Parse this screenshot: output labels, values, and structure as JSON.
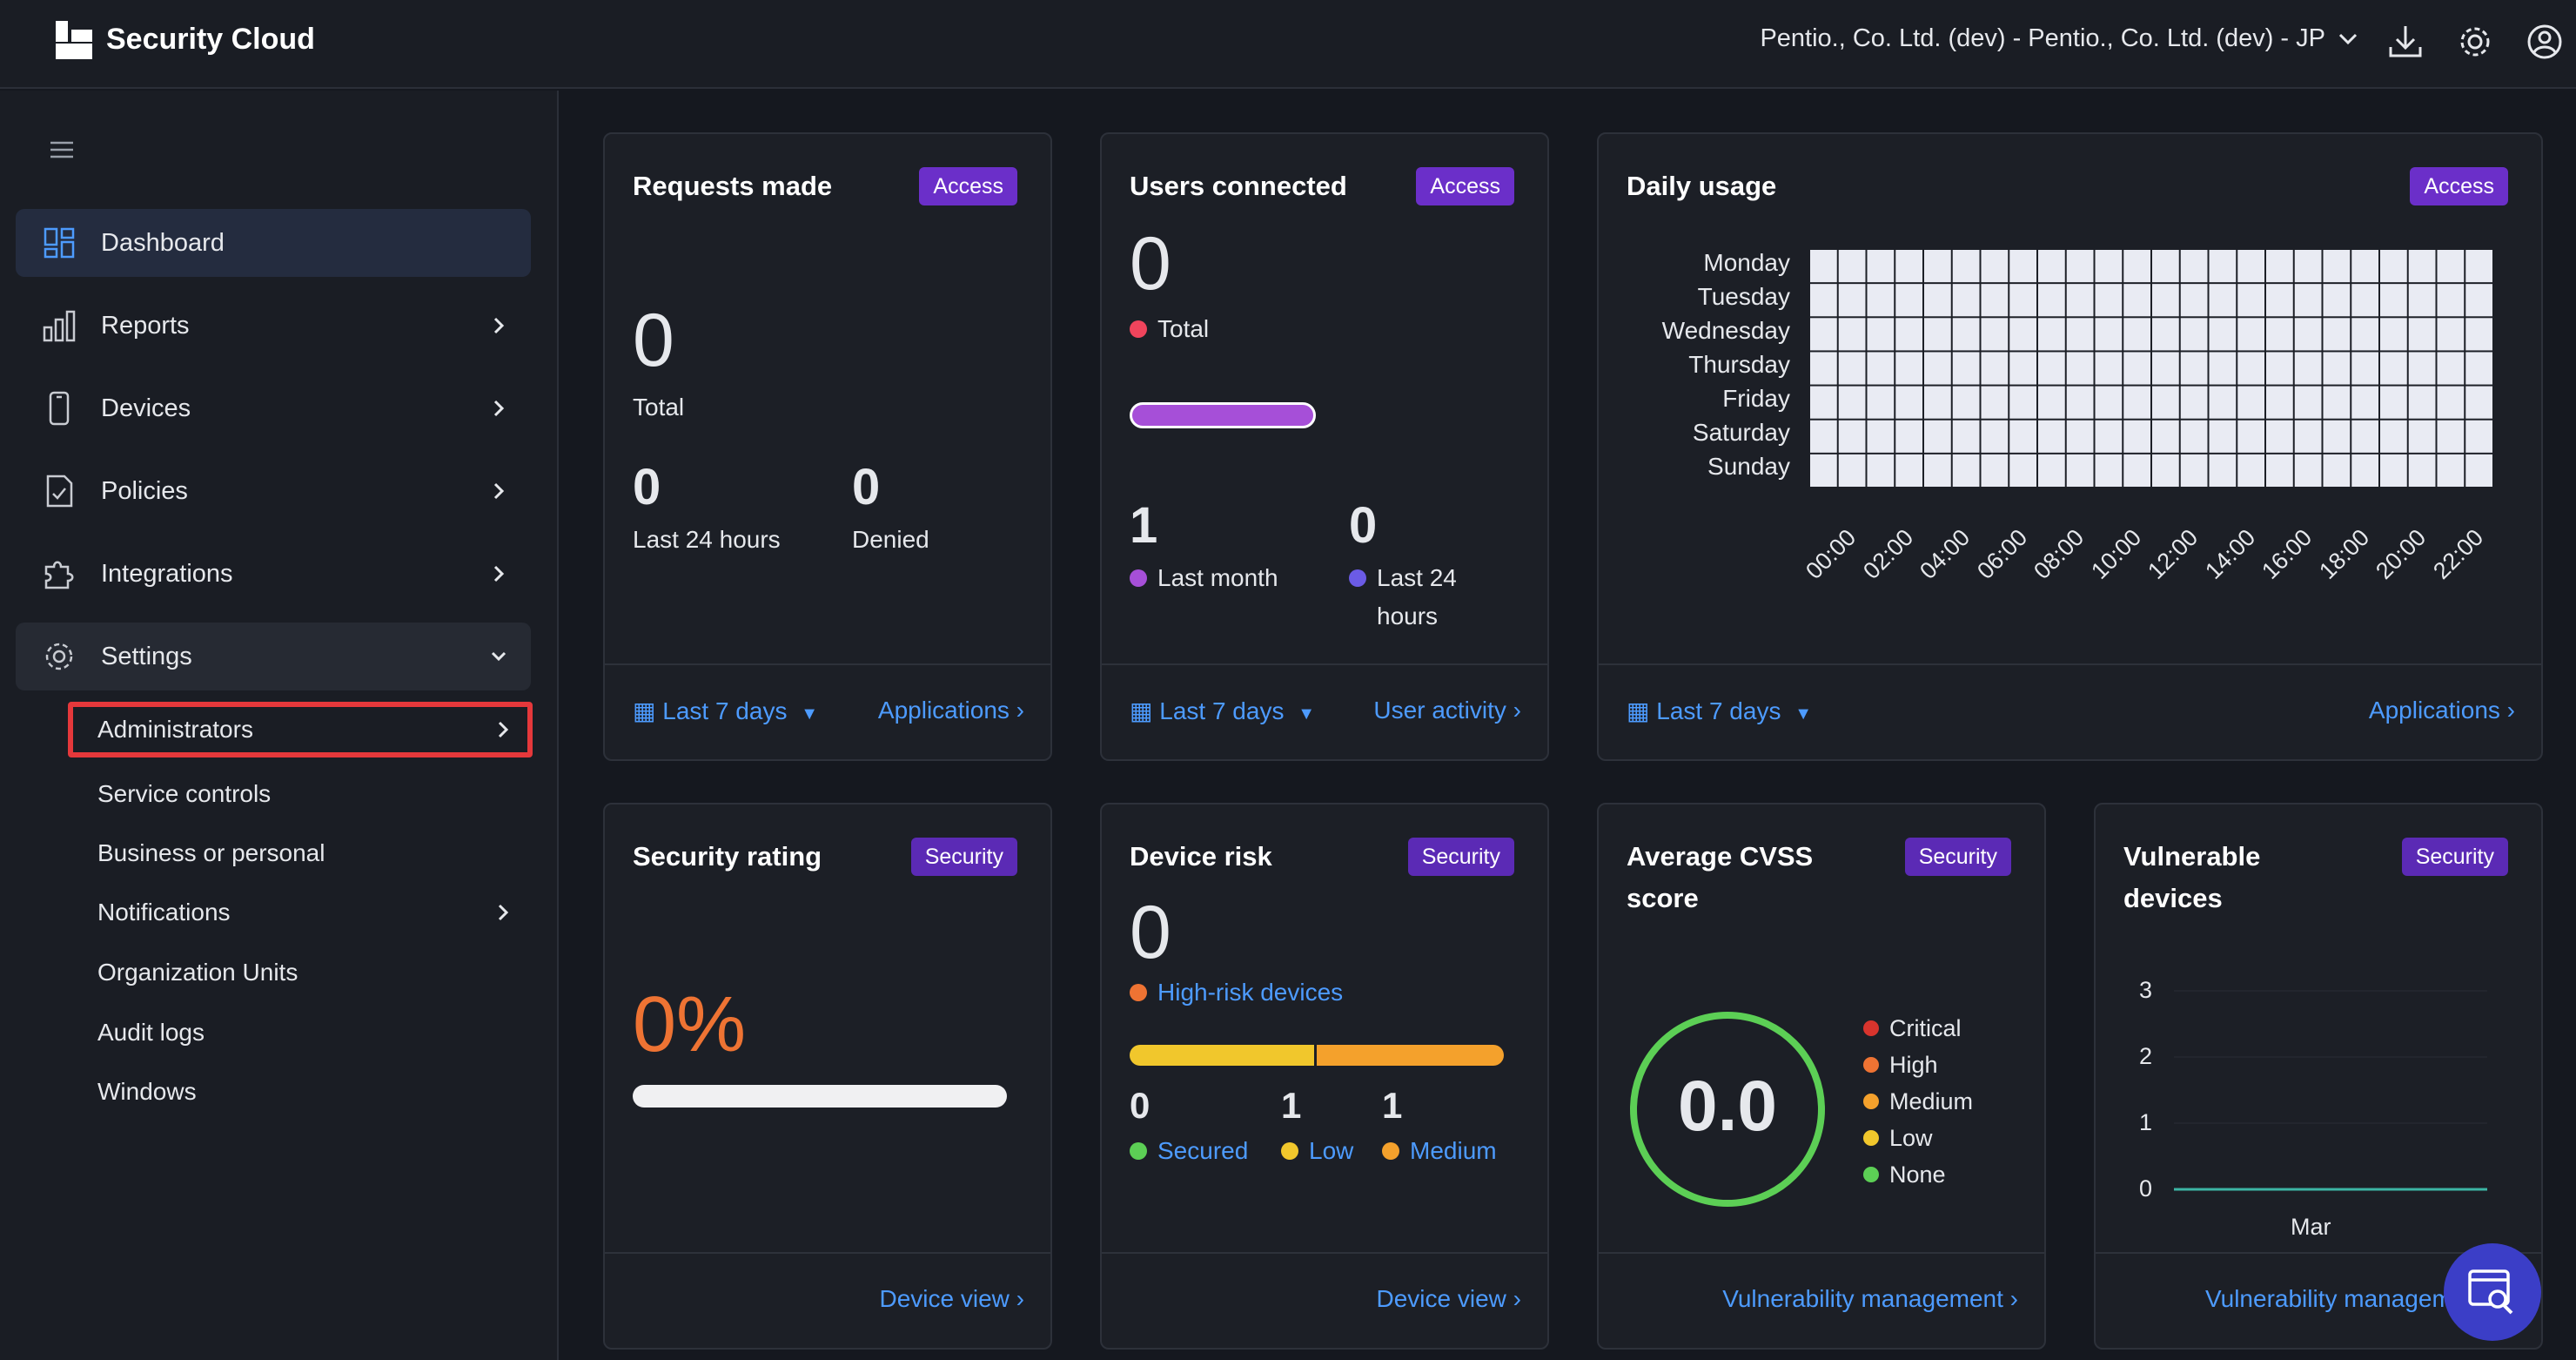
{
  "header": {
    "brand": "Security Cloud",
    "org_selector": "Pentio., Co. Ltd. (dev) - Pentio., Co. Ltd. (dev) - JP"
  },
  "sidebar": {
    "items": [
      {
        "label": "Dashboard",
        "icon": "dashboard-icon"
      },
      {
        "label": "Reports",
        "icon": "bar-chart-icon"
      },
      {
        "label": "Devices",
        "icon": "phone-icon"
      },
      {
        "label": "Policies",
        "icon": "document-check-icon"
      },
      {
        "label": "Integrations",
        "icon": "puzzle-icon"
      },
      {
        "label": "Settings",
        "icon": "gear-icon"
      }
    ],
    "settings_sub": [
      "Administrators",
      "Service controls",
      "Business or personal",
      "Notifications",
      "Organization Units",
      "Audit logs",
      "Windows"
    ]
  },
  "cards": {
    "requests": {
      "title": "Requests made",
      "badge": "Access",
      "total_value": "0",
      "total_label": "Total",
      "last24_value": "0",
      "last24_label": "Last 24 hours",
      "denied_value": "0",
      "denied_label": "Denied",
      "period": "Last 7 days",
      "link": "Applications"
    },
    "users": {
      "title": "Users connected",
      "badge": "Access",
      "total_value": "0",
      "total_label": "Total",
      "month_value": "1",
      "month_label": "Last month",
      "last24_value": "0",
      "last24_label_1": "Last 24",
      "last24_label_2": "hours",
      "period": "Last 7 days",
      "link": "User activity"
    },
    "daily": {
      "title": "Daily usage",
      "badge": "Access",
      "days": [
        "Monday",
        "Tuesday",
        "Wednesday",
        "Thursday",
        "Friday",
        "Saturday",
        "Sunday"
      ],
      "hours": [
        "00:00",
        "02:00",
        "04:00",
        "06:00",
        "08:00",
        "10:00",
        "12:00",
        "14:00",
        "16:00",
        "18:00",
        "20:00",
        "22:00"
      ],
      "period": "Last 7 days",
      "link": "Applications"
    },
    "security_rating": {
      "title": "Security rating",
      "badge": "Security",
      "value": "0%",
      "fraction": 0,
      "link": "Device view"
    },
    "device_risk": {
      "title": "Device risk",
      "badge": "Security",
      "value": "0",
      "high_risk_label": "High-risk devices",
      "secured_value": "0",
      "secured_label": "Secured",
      "low_value": "1",
      "low_label": "Low",
      "medium_value": "1",
      "medium_label": "Medium",
      "link": "Device view"
    },
    "cvss": {
      "title_1": "Average CVSS",
      "title_2": "score",
      "badge": "Security",
      "value": "0.0",
      "legend": [
        {
          "label": "Critical",
          "color": "#d8342d"
        },
        {
          "label": "High",
          "color": "#ee7333"
        },
        {
          "label": "Medium",
          "color": "#f4a12c"
        },
        {
          "label": "Low",
          "color": "#f1c72c"
        },
        {
          "label": "None",
          "color": "#5ccf55"
        }
      ],
      "link": "Vulnerability management"
    },
    "vulnerable": {
      "title_1": "Vulnerable",
      "title_2": "devices",
      "badge": "Security",
      "y_ticks": [
        "3",
        "2",
        "1",
        "0"
      ],
      "x_label": "Mar",
      "link": "Vulnerability managem"
    }
  },
  "colors": {
    "accent_link": "#4d9bff",
    "badge_purple": "#6b2fc9",
    "highlight_red": "#e5383b"
  }
}
